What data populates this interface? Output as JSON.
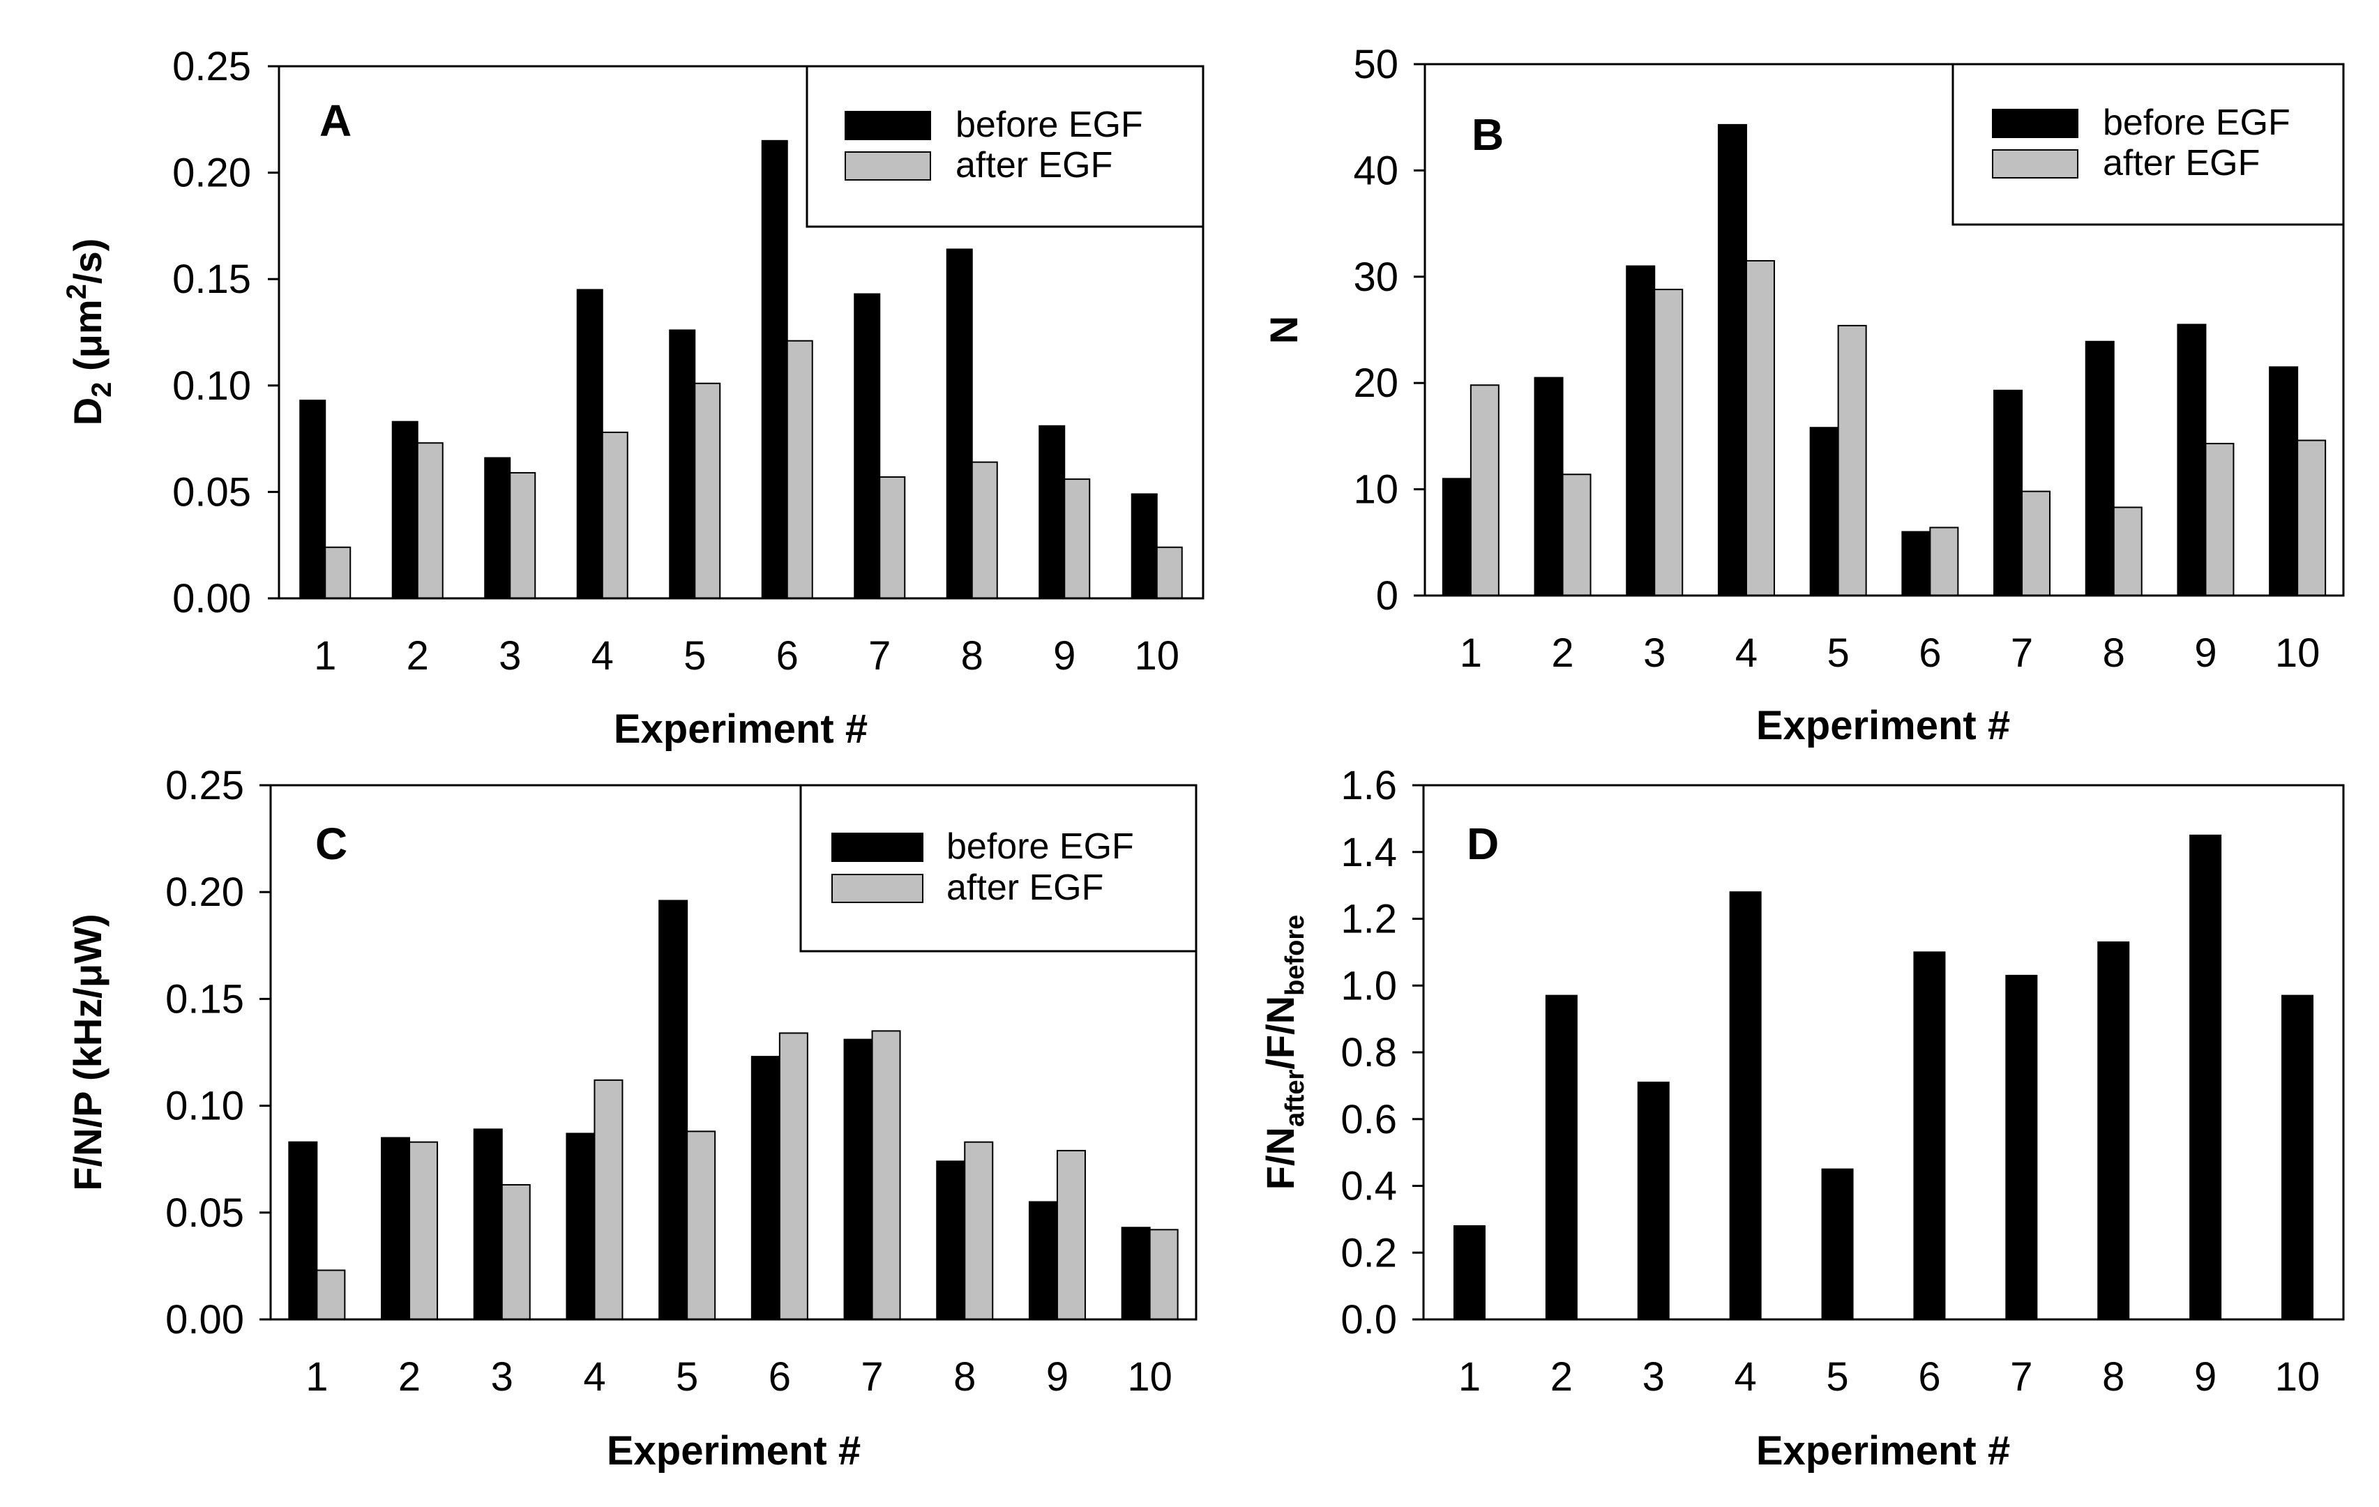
{
  "chart_data": [
    {
      "type": "bar",
      "panel_label": "A",
      "categories": [
        "1",
        "2",
        "3",
        "4",
        "5",
        "6",
        "7",
        "8",
        "9",
        "10"
      ],
      "series": [
        {
          "name": "before EGF",
          "color": "#000000",
          "values": [
            0.093,
            0.083,
            0.066,
            0.145,
            0.126,
            0.215,
            0.143,
            0.164,
            0.081,
            0.049
          ]
        },
        {
          "name": "after EGF",
          "color": "#c0c0c0",
          "values": [
            0.024,
            0.073,
            0.059,
            0.078,
            0.101,
            0.121,
            0.057,
            0.064,
            0.056,
            0.024
          ]
        }
      ],
      "xlabel": "Experiment #",
      "ylabel": {
        "main": "D",
        "sub": "2",
        "unit_open": " (μm",
        "sup": "2",
        "unit_close": "/s)"
      },
      "ylim": [
        0,
        0.25
      ],
      "yticks": [
        "0.00",
        "0.05",
        "0.10",
        "0.15",
        "0.20",
        "0.25"
      ],
      "legend": [
        "before EGF",
        "after EGF"
      ],
      "legend_position": "top-right"
    },
    {
      "type": "bar",
      "panel_label": "B",
      "categories": [
        "1",
        "2",
        "3",
        "4",
        "5",
        "6",
        "7",
        "8",
        "9",
        "10"
      ],
      "series": [
        {
          "name": "before EGF",
          "color": "#000000",
          "values": [
            11,
            20.5,
            31,
            44.3,
            15.8,
            6,
            19.3,
            23.9,
            25.5,
            21.5
          ]
        },
        {
          "name": "after EGF",
          "color": "#c0c0c0",
          "values": [
            19.8,
            11.4,
            28.8,
            31.5,
            25.4,
            6.4,
            9.8,
            8.3,
            14.3,
            14.6
          ]
        }
      ],
      "xlabel": "Experiment #",
      "ylabel": {
        "main": "N"
      },
      "ylim": [
        0,
        50
      ],
      "yticks": [
        "0",
        "10",
        "20",
        "30",
        "40",
        "50"
      ],
      "legend": [
        "before EGF",
        "after EGF"
      ],
      "legend_position": "top-right"
    },
    {
      "type": "bar",
      "panel_label": "C",
      "categories": [
        "1",
        "2",
        "3",
        "4",
        "5",
        "6",
        "7",
        "8",
        "9",
        "10"
      ],
      "series": [
        {
          "name": "before EGF",
          "color": "#000000",
          "values": [
            0.083,
            0.085,
            0.089,
            0.087,
            0.196,
            0.123,
            0.131,
            0.074,
            0.055,
            0.043
          ]
        },
        {
          "name": "after EGF",
          "color": "#c0c0c0",
          "values": [
            0.023,
            0.083,
            0.063,
            0.112,
            0.088,
            0.134,
            0.135,
            0.083,
            0.079,
            0.042
          ]
        }
      ],
      "xlabel": "Experiment #",
      "ylabel": {
        "main": "F/N/P (kHz/μW)"
      },
      "ylim": [
        0,
        0.25
      ],
      "yticks": [
        "0.00",
        "0.05",
        "0.10",
        "0.15",
        "0.20",
        "0.25"
      ],
      "legend": [
        "before EGF",
        "after EGF"
      ],
      "legend_position": "top-right"
    },
    {
      "type": "bar",
      "panel_label": "D",
      "categories": [
        "1",
        "2",
        "3",
        "4",
        "5",
        "6",
        "7",
        "8",
        "9",
        "10"
      ],
      "series": [
        {
          "name": "F/Nafter/F/Nbefore",
          "color": "#000000",
          "values": [
            0.28,
            0.97,
            0.71,
            1.28,
            0.45,
            1.1,
            1.03,
            1.13,
            1.45,
            0.97
          ]
        }
      ],
      "xlabel": "Experiment #",
      "ylabel": {
        "main1": "F/N",
        "sub1": "after",
        "main2": "/F/N",
        "sub2": "before"
      },
      "ylim": [
        0,
        1.6
      ],
      "yticks": [
        "0.0",
        "0.2",
        "0.4",
        "0.6",
        "0.8",
        "1.0",
        "1.2",
        "1.4",
        "1.6"
      ],
      "legend": [],
      "legend_position": "none"
    }
  ]
}
